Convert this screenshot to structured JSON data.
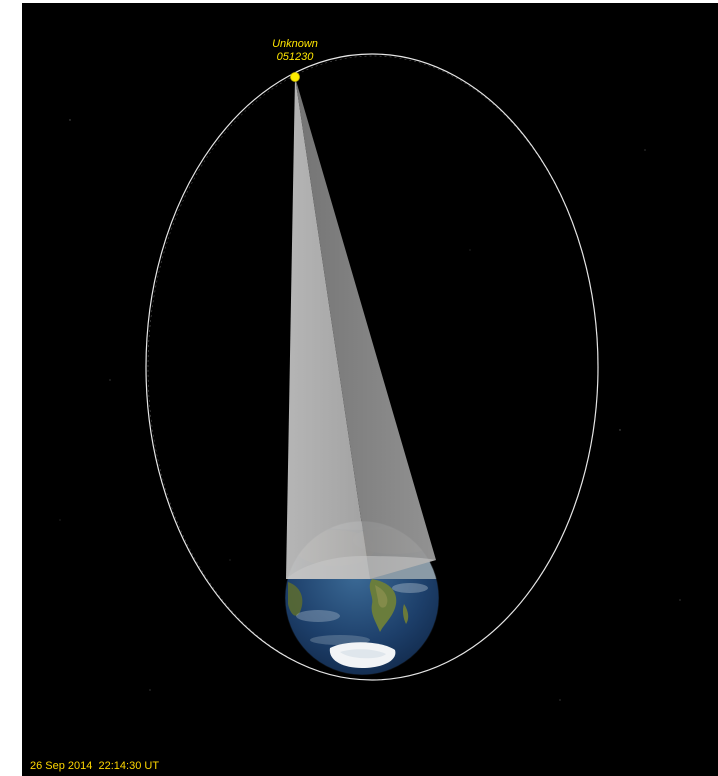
{
  "satellite": {
    "name": "Unknown",
    "id": "051230",
    "label_color": "#ffe500",
    "marker_color": "#ffee00"
  },
  "status": {
    "datetime": "26 Sep 2014  22:14:30 UT"
  },
  "colors": {
    "background": "#000000",
    "orbit": "#ffffff",
    "footprint_light": "#bdbdbd",
    "footprint_dark": "#8c8c8c"
  }
}
